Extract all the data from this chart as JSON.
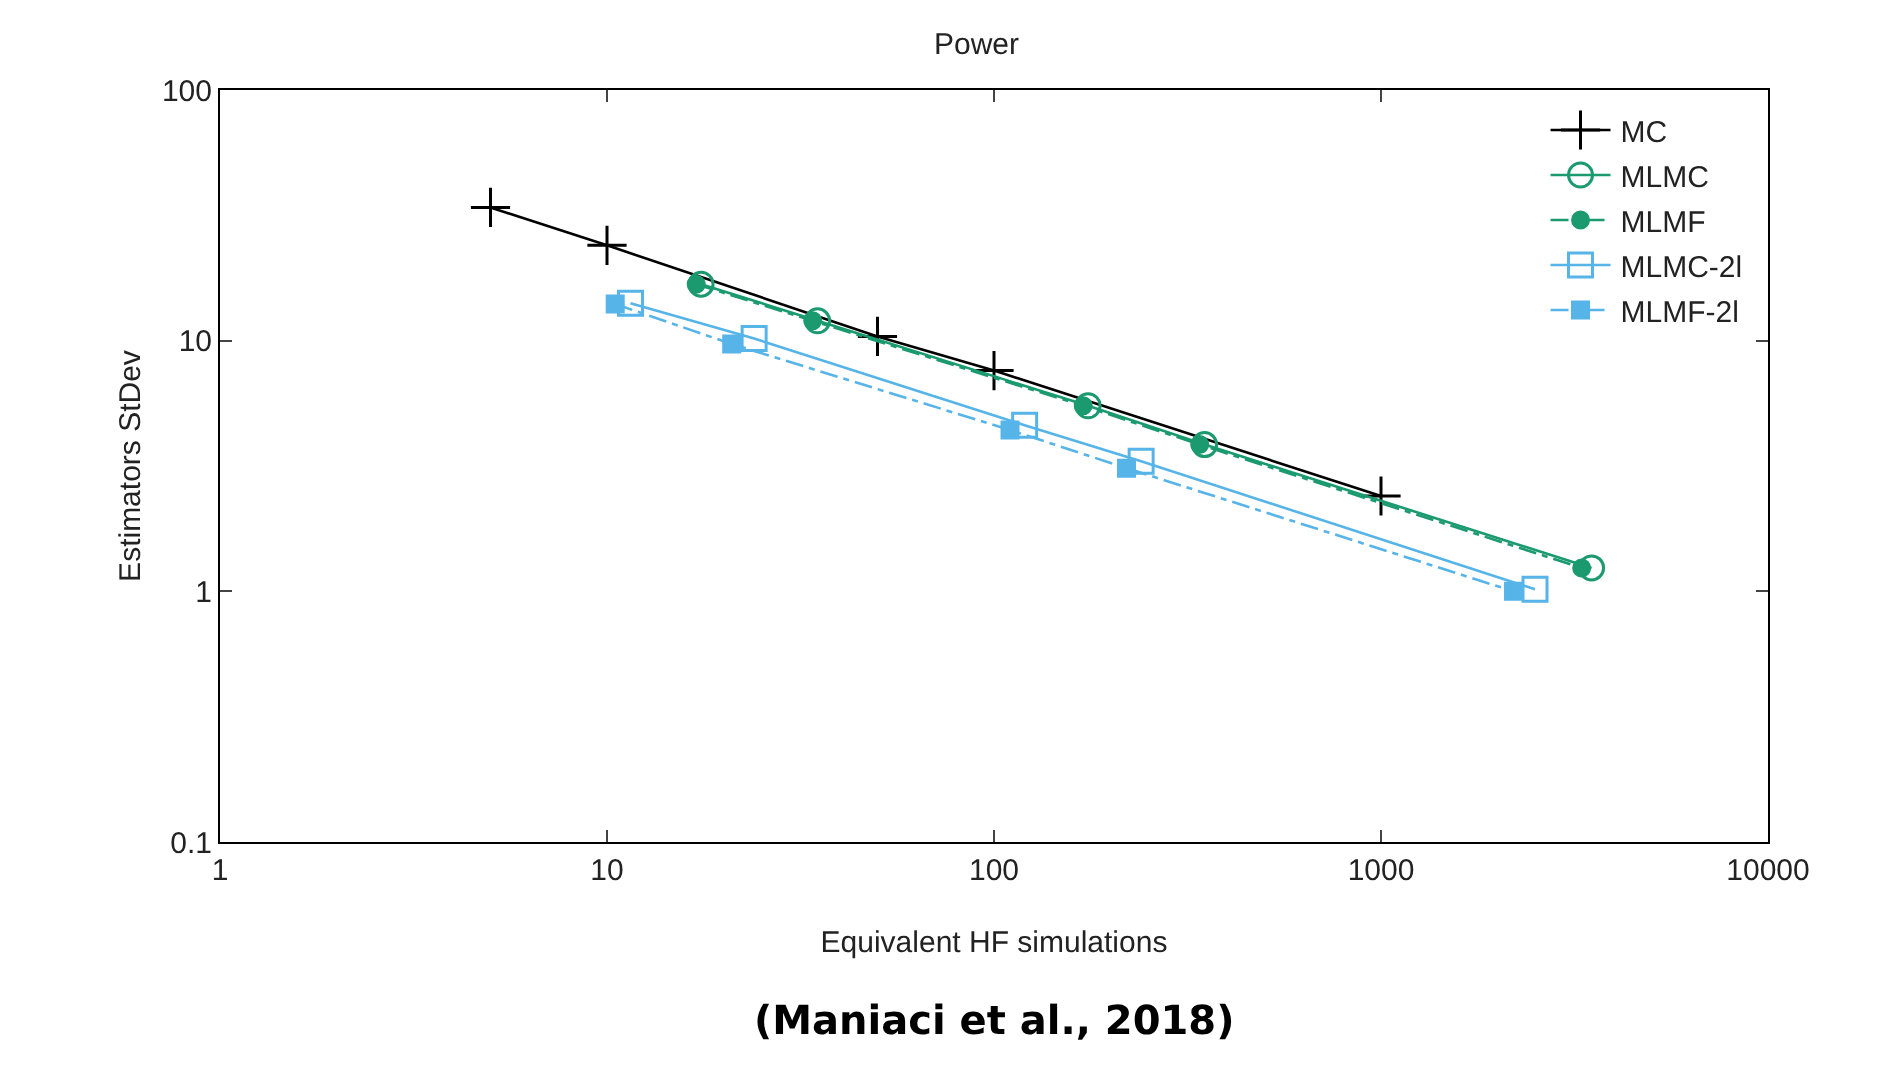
{
  "chart_data": {
    "type": "line",
    "title": "Power",
    "xlabel": "Equivalent HF simulations",
    "ylabel": "Estimators StDev",
    "log": "xy",
    "xlim": [
      1,
      10000
    ],
    "xticks": [
      1,
      10,
      100,
      1000,
      10000
    ],
    "ylim": [
      0.1,
      100
    ],
    "yticks": [
      0.1,
      1,
      10,
      100
    ],
    "grid": false,
    "legend": "top right",
    "annotations": [
      "(Maniaci et al., 2018)"
    ],
    "series": [
      {
        "name": "MC",
        "color": "#000000",
        "marker": "cross",
        "line_style": "solid",
        "x": [
          5,
          10,
          50,
          100,
          1000
        ],
        "values": [
          34,
          24,
          10.4,
          7.6,
          2.4
        ]
      },
      {
        "name": "MLMC",
        "color": "#1a9a6e",
        "marker": "circle",
        "line_style": "solid",
        "x": [
          17.5,
          35,
          175,
          350,
          3500
        ],
        "values": [
          16.8,
          12,
          5.5,
          3.85,
          1.24
        ]
      },
      {
        "name": "MLMF",
        "color": "#1a9a6e",
        "marker": "circle",
        "line_style": "dashed",
        "x": [
          17,
          34,
          170,
          340,
          3300
        ],
        "values": [
          16.8,
          12,
          5.5,
          3.85,
          1.24
        ]
      },
      {
        "name": "MLMC-2l",
        "color": "#56b4e9",
        "marker": "square",
        "line_style": "solid",
        "x": [
          11.5,
          24,
          120,
          240,
          2500
        ],
        "values": [
          14.1,
          10.2,
          4.6,
          3.3,
          1.02
        ]
      },
      {
        "name": "MLMF-2l",
        "color": "#56b4e9",
        "marker": "square",
        "line_style": "dashed",
        "x": [
          10.5,
          21,
          110,
          220,
          2200
        ],
        "values": [
          14,
          9.7,
          4.4,
          3.1,
          1.0
        ]
      }
    ]
  }
}
